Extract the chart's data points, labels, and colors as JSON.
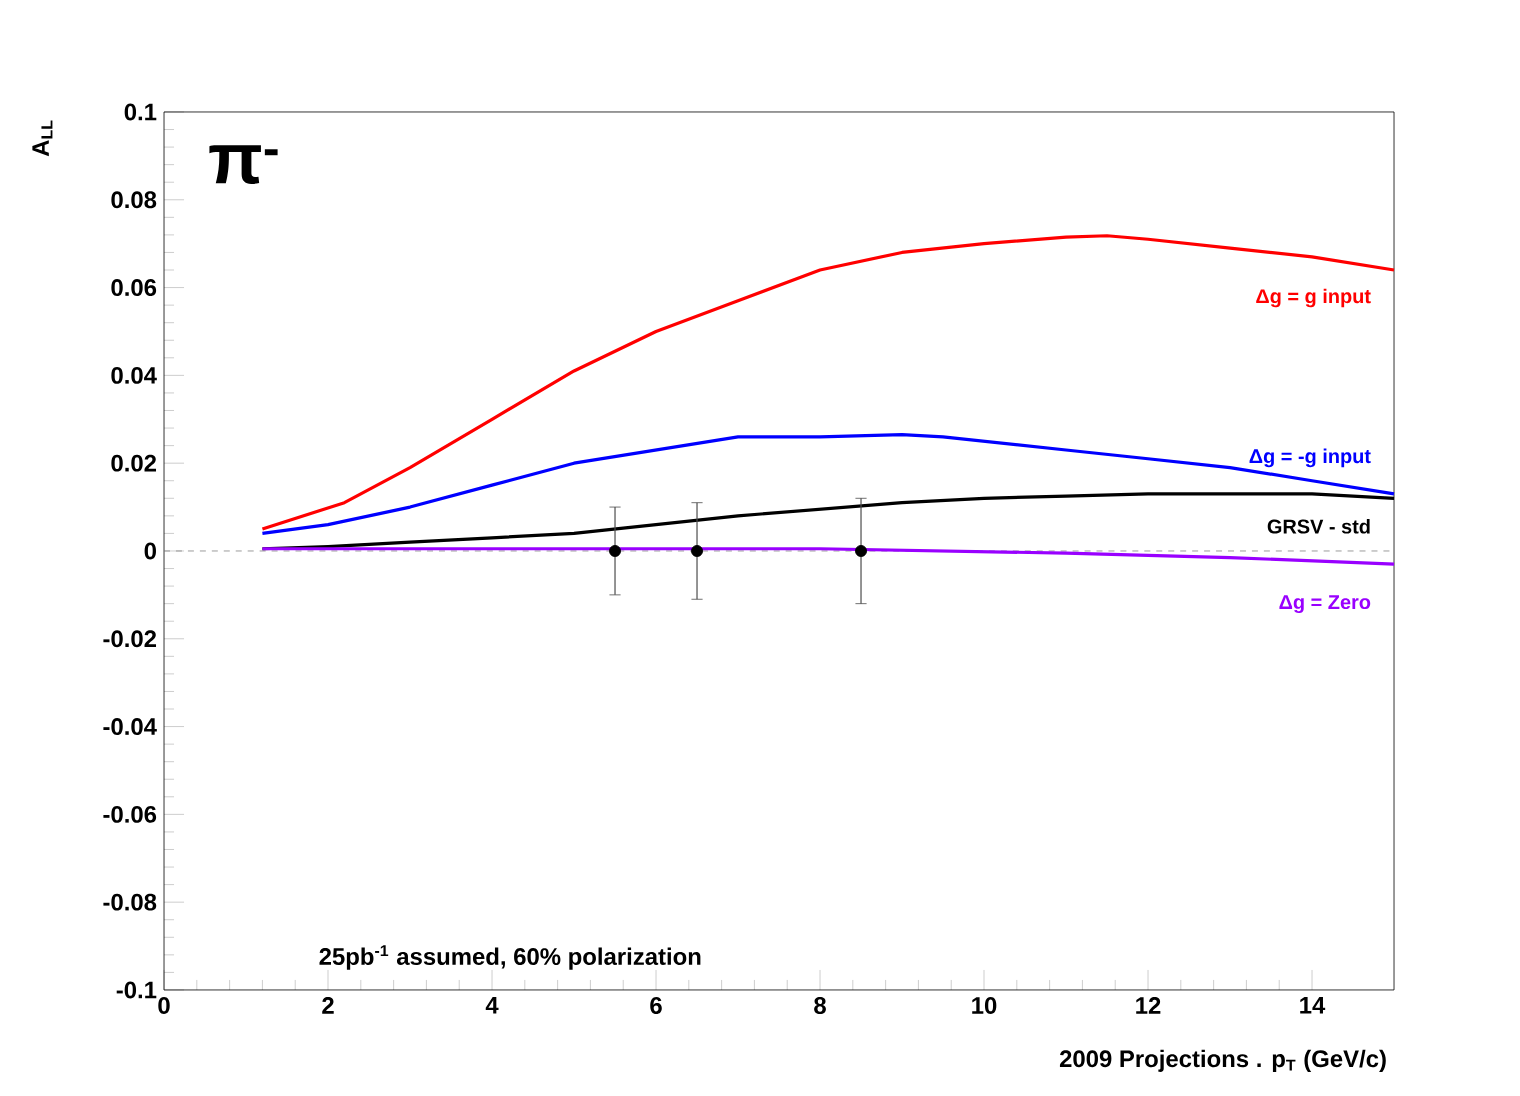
{
  "chart_data": {
    "type": "line",
    "ylabel": "A$_{LL}$",
    "xlabel": "2009 Projections . p$_{T}$ (GeV/c)",
    "annotations": [
      "π$^{-}$",
      "25pb$^{-1}$ assumed, 60% polarization"
    ],
    "xlim": [
      0,
      15
    ],
    "ylim": [
      -0.1,
      0.1
    ],
    "xticks": [
      0,
      2,
      4,
      6,
      8,
      10,
      12,
      14
    ],
    "yticks": [
      -0.1,
      -0.08,
      -0.06,
      -0.04,
      -0.02,
      0,
      0.02,
      0.04,
      0.06,
      0.08,
      0.1
    ],
    "grid": false,
    "ref_lines": [
      {
        "axis": "y",
        "value": 0,
        "color": "#808080",
        "line_style": "dashed"
      }
    ],
    "series": [
      {
        "name": "Δg = g input",
        "color": "#ff0000",
        "marker": "none",
        "x": [
          1.2,
          2.2,
          3,
          4,
          5,
          6,
          7,
          8,
          9,
          10,
          11,
          11.5,
          12,
          13,
          14,
          15
        ],
        "values": [
          0.005,
          0.011,
          0.019,
          0.03,
          0.041,
          0.05,
          0.057,
          0.064,
          0.068,
          0.07,
          0.0715,
          0.0718,
          0.071,
          0.069,
          0.067,
          0.064
        ]
      },
      {
        "name": "Δg = -g input",
        "color": "#0000ff",
        "marker": "none",
        "x": [
          1.2,
          2,
          3,
          4,
          5,
          6,
          7,
          8,
          9,
          9.5,
          11,
          12,
          13,
          14,
          15
        ],
        "values": [
          0.004,
          0.006,
          0.01,
          0.015,
          0.02,
          0.023,
          0.026,
          0.026,
          0.0265,
          0.026,
          0.023,
          0.021,
          0.019,
          0.016,
          0.013
        ]
      },
      {
        "name": "GRSV - std",
        "color": "#000000",
        "marker": "none",
        "x": [
          1.2,
          2,
          3,
          4,
          5,
          6,
          7,
          8,
          9,
          10,
          11,
          12,
          13,
          14,
          15
        ],
        "values": [
          0.0005,
          0.001,
          0.002,
          0.003,
          0.004,
          0.006,
          0.008,
          0.0095,
          0.011,
          0.012,
          0.0125,
          0.013,
          0.013,
          0.013,
          0.012
        ]
      },
      {
        "name": "Δg = Zero",
        "color": "#9900ff",
        "marker": "none",
        "x": [
          1.2,
          4,
          8,
          9.5,
          11,
          13,
          15
        ],
        "values": [
          0.0005,
          0.0005,
          0.0005,
          0,
          -0.0005,
          -0.0015,
          -0.003
        ]
      },
      {
        "type": "scatter",
        "color": "#000000",
        "marker": "circle",
        "x": [
          5.5,
          6.5,
          8.5
        ],
        "values": [
          0,
          0,
          0
        ],
        "errors": [
          0.01,
          0.011,
          0.012
        ]
      }
    ]
  }
}
